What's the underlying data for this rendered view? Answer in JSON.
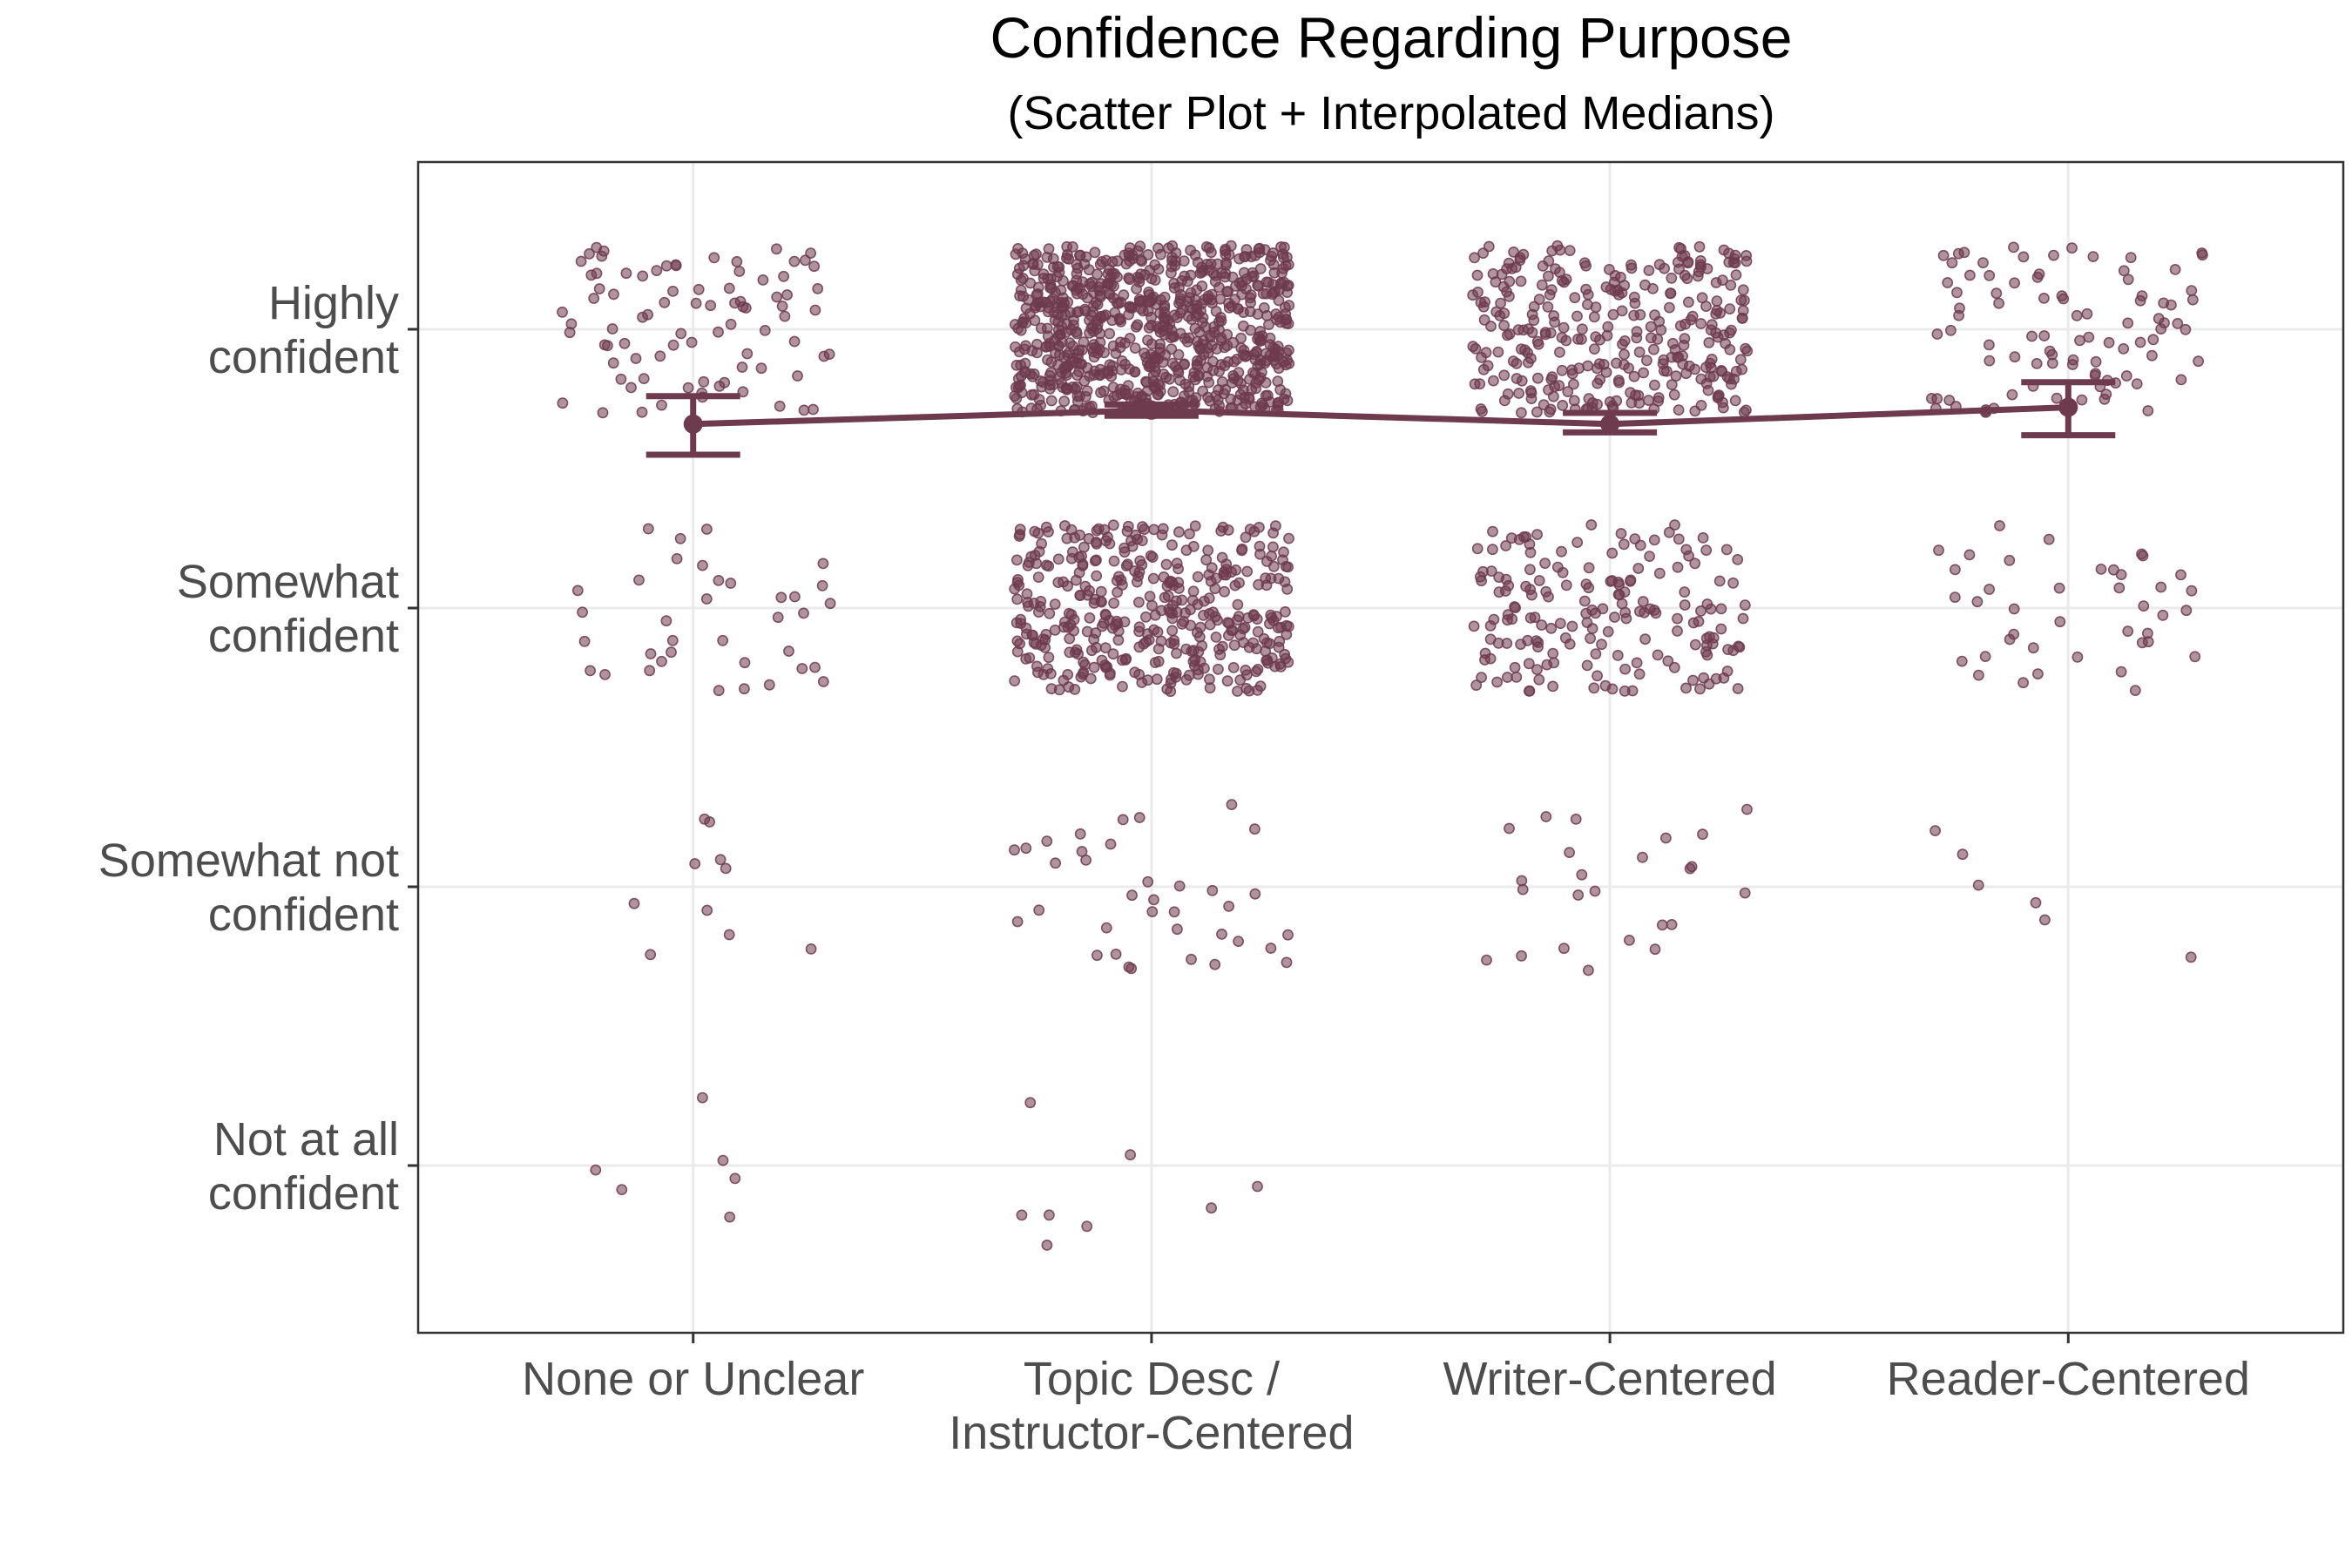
{
  "chart_data": {
    "type": "scatter",
    "title": "Confidence Regarding Purpose",
    "subtitle": "(Scatter Plot + Interpolated Medians)",
    "xlabel": "",
    "ylabel": "",
    "categories": [
      [
        "None or Unclear"
      ],
      [
        "Topic Desc /",
        "Instructor-Centered"
      ],
      [
        "Writer-Centered"
      ],
      [
        "Reader-Centered"
      ]
    ],
    "y_levels": [
      [
        "Not at all",
        "confident"
      ],
      [
        "Somewhat not",
        "confident"
      ],
      [
        "Somewhat",
        "confident"
      ],
      [
        "Highly",
        "confident"
      ]
    ],
    "ylim": [
      0.4,
      4.6
    ],
    "grid": true,
    "legend": "none",
    "point_color": "#6e3a4e",
    "line_color": "#6e3a4e",
    "point_counts": [
      [
        6,
        10,
        36,
        84
      ],
      [
        8,
        36,
        400,
        800
      ],
      [
        0,
        24,
        180,
        320
      ],
      [
        0,
        6,
        40,
        90
      ]
    ],
    "interpolated_medians": [
      {
        "category": "None or Unclear",
        "median": 3.66,
        "lower": 3.55,
        "upper": 3.76
      },
      {
        "category": "Topic Desc / Instructor-Centered",
        "median": 3.71,
        "lower": 3.69,
        "upper": 3.73
      },
      {
        "category": "Writer-Centered",
        "median": 3.66,
        "lower": 3.63,
        "upper": 3.7
      },
      {
        "category": "Reader-Centered",
        "median": 3.72,
        "lower": 3.62,
        "upper": 3.81
      }
    ]
  }
}
